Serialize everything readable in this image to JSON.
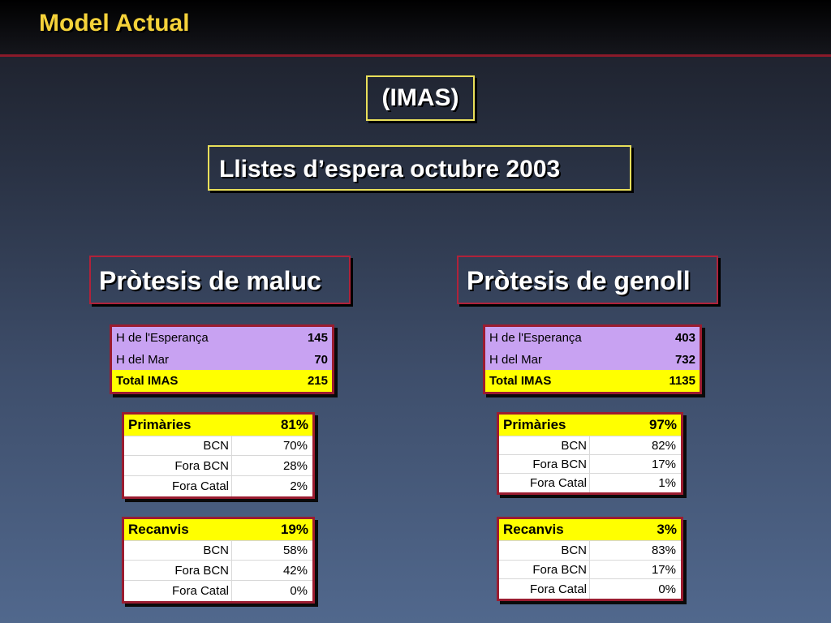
{
  "header": {
    "title": "Model Actual"
  },
  "subtitle": "(IMAS)",
  "heading": "Llistes d’espera octubre 2003",
  "columns": [
    {
      "title": "Pròtesis de maluc",
      "hospitals": [
        {
          "name": "H de l'Esperança",
          "value": "145"
        },
        {
          "name": "H del Mar",
          "value": "70"
        }
      ],
      "total": {
        "name": "Total IMAS",
        "value": "215"
      },
      "primaries": {
        "label": "Primàries",
        "pct": "81%",
        "rows": [
          {
            "name": "BCN",
            "value": "70%"
          },
          {
            "name": "Fora BCN",
            "value": "28%"
          },
          {
            "name": "Fora Catal",
            "value": "2%"
          }
        ]
      },
      "recanvis": {
        "label": "Recanvis",
        "pct": "19%",
        "rows": [
          {
            "name": "BCN",
            "value": "58%"
          },
          {
            "name": "Fora BCN",
            "value": "42%"
          },
          {
            "name": "Fora Catal",
            "value": "0%"
          }
        ]
      }
    },
    {
      "title": "Pròtesis de genoll",
      "hospitals": [
        {
          "name": "H de l'Esperança",
          "value": "403"
        },
        {
          "name": "H del Mar",
          "value": "732"
        }
      ],
      "total": {
        "name": "Total IMAS",
        "value": "1135"
      },
      "primaries": {
        "label": "Primàries",
        "pct": "97%",
        "rows": [
          {
            "name": "BCN",
            "value": "82%"
          },
          {
            "name": "Fora BCN",
            "value": "17%"
          },
          {
            "name": "Fora Catal",
            "value": "1%"
          }
        ]
      },
      "recanvis": {
        "label": "Recanvis",
        "pct": "3%",
        "rows": [
          {
            "name": "BCN",
            "value": "83%"
          },
          {
            "name": "Fora BCN",
            "value": "17%"
          },
          {
            "name": "Fora Catal",
            "value": "0%"
          }
        ]
      }
    }
  ],
  "colors": {
    "title_yellow": "#f5d23a",
    "box_yellow": "#e9df5a",
    "box_red": "#b0223a",
    "row_purple": "#c8a2f2",
    "row_yellow": "#ffff00"
  }
}
